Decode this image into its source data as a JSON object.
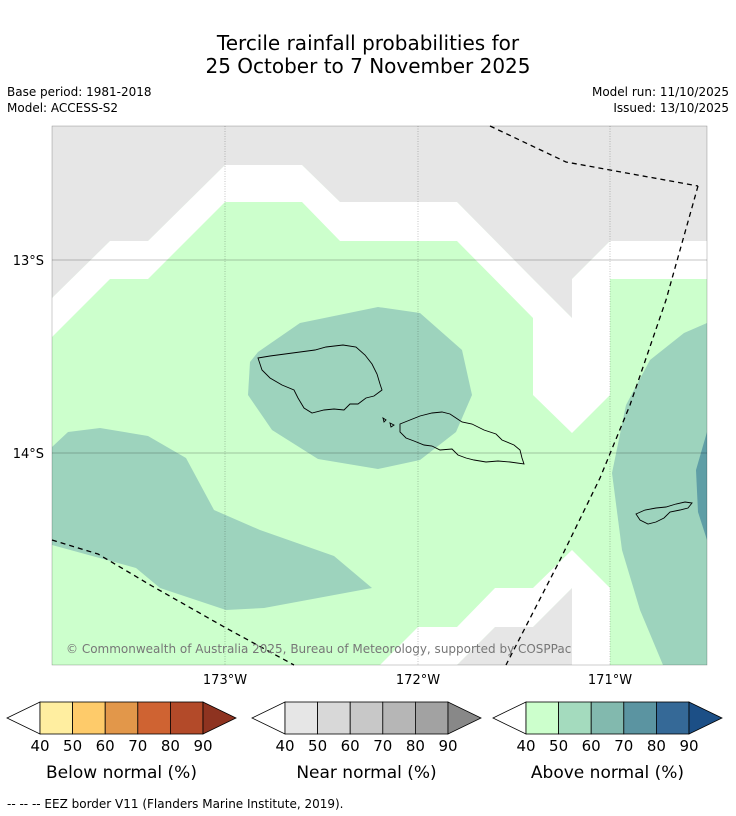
{
  "header": {
    "title_line1": "Tercile rainfall probabilities for",
    "title_line2": "25 October to 7 November 2025",
    "base_period": "Base period: 1981-2018",
    "model": "Model: ACCESS-S2",
    "model_run": "Model run: 11/10/2025",
    "issued": "Issued: 13/10/2025"
  },
  "map": {
    "lat_labels": [
      "13°S",
      "14°S"
    ],
    "lon_labels": [
      "173°W",
      "172°W",
      "171°W"
    ],
    "copyright": "© Commonwealth of Australia 2025, Bureau of Meteorology, supported by COSPPac",
    "colors": {
      "grey": "#e6e6e6",
      "above40": "#ccffcc",
      "above50": "#9dd3bd",
      "above70": "#5f9ea6"
    }
  },
  "colorbars": [
    {
      "label": "Below normal (%)",
      "ticks": [
        "40",
        "50",
        "60",
        "70",
        "80",
        "90"
      ],
      "colors": [
        "#ffeea0",
        "#fecb6a",
        "#e2974a",
        "#cf6332",
        "#b34a29",
        "#8e3320"
      ]
    },
    {
      "label": "Near normal (%)",
      "ticks": [
        "40",
        "50",
        "60",
        "70",
        "80",
        "90"
      ],
      "colors": [
        "#e6e6e6",
        "#d8d8d8",
        "#c8c8c8",
        "#b6b6b6",
        "#a2a2a2",
        "#888888"
      ]
    },
    {
      "label": "Above normal (%)",
      "ticks": [
        "40",
        "50",
        "60",
        "70",
        "80",
        "90"
      ],
      "colors": [
        "#ccffcc",
        "#a4dbbe",
        "#82b9ae",
        "#5b94a1",
        "#356997",
        "#1c4f86"
      ]
    }
  ],
  "footnote": "-- -- -- EEZ border V11 (Flanders Marine Institute, 2019)."
}
